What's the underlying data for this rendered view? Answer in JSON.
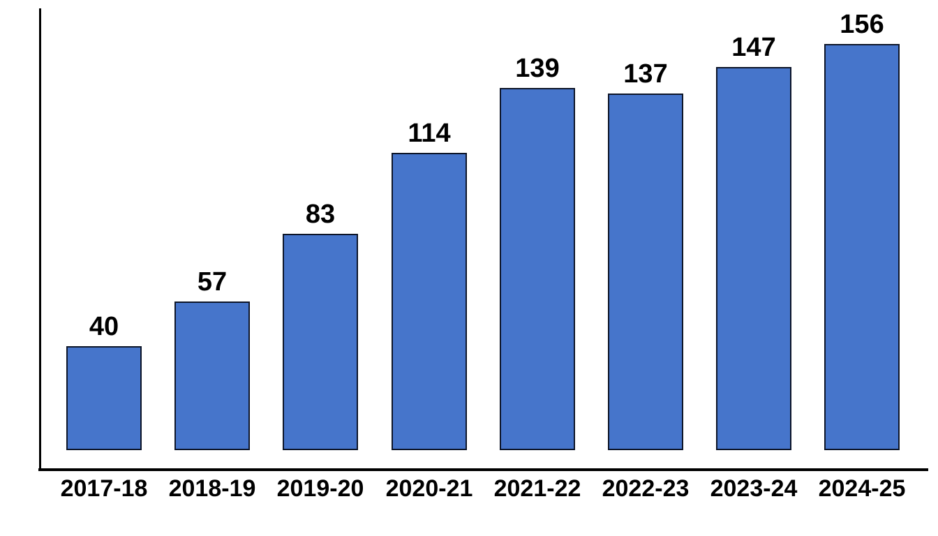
{
  "chart_data": {
    "type": "bar",
    "categories": [
      "2017-18",
      "2018-19",
      "2019-20",
      "2020-21",
      "2021-22",
      "2022-23",
      "2023-24",
      "2024-25"
    ],
    "values": [
      40,
      57,
      83,
      114,
      139,
      137,
      147,
      156
    ],
    "title": "",
    "xlabel": "",
    "ylabel": "",
    "ylim": [
      0,
      165
    ],
    "grid": false,
    "legend": false,
    "data_labels_shown": true,
    "colors": {
      "bar_fill": "#4675CB",
      "bar_border": "#0D1528",
      "axis_line": "#000000",
      "label_text": "#000000",
      "background": "#ffffff"
    }
  }
}
